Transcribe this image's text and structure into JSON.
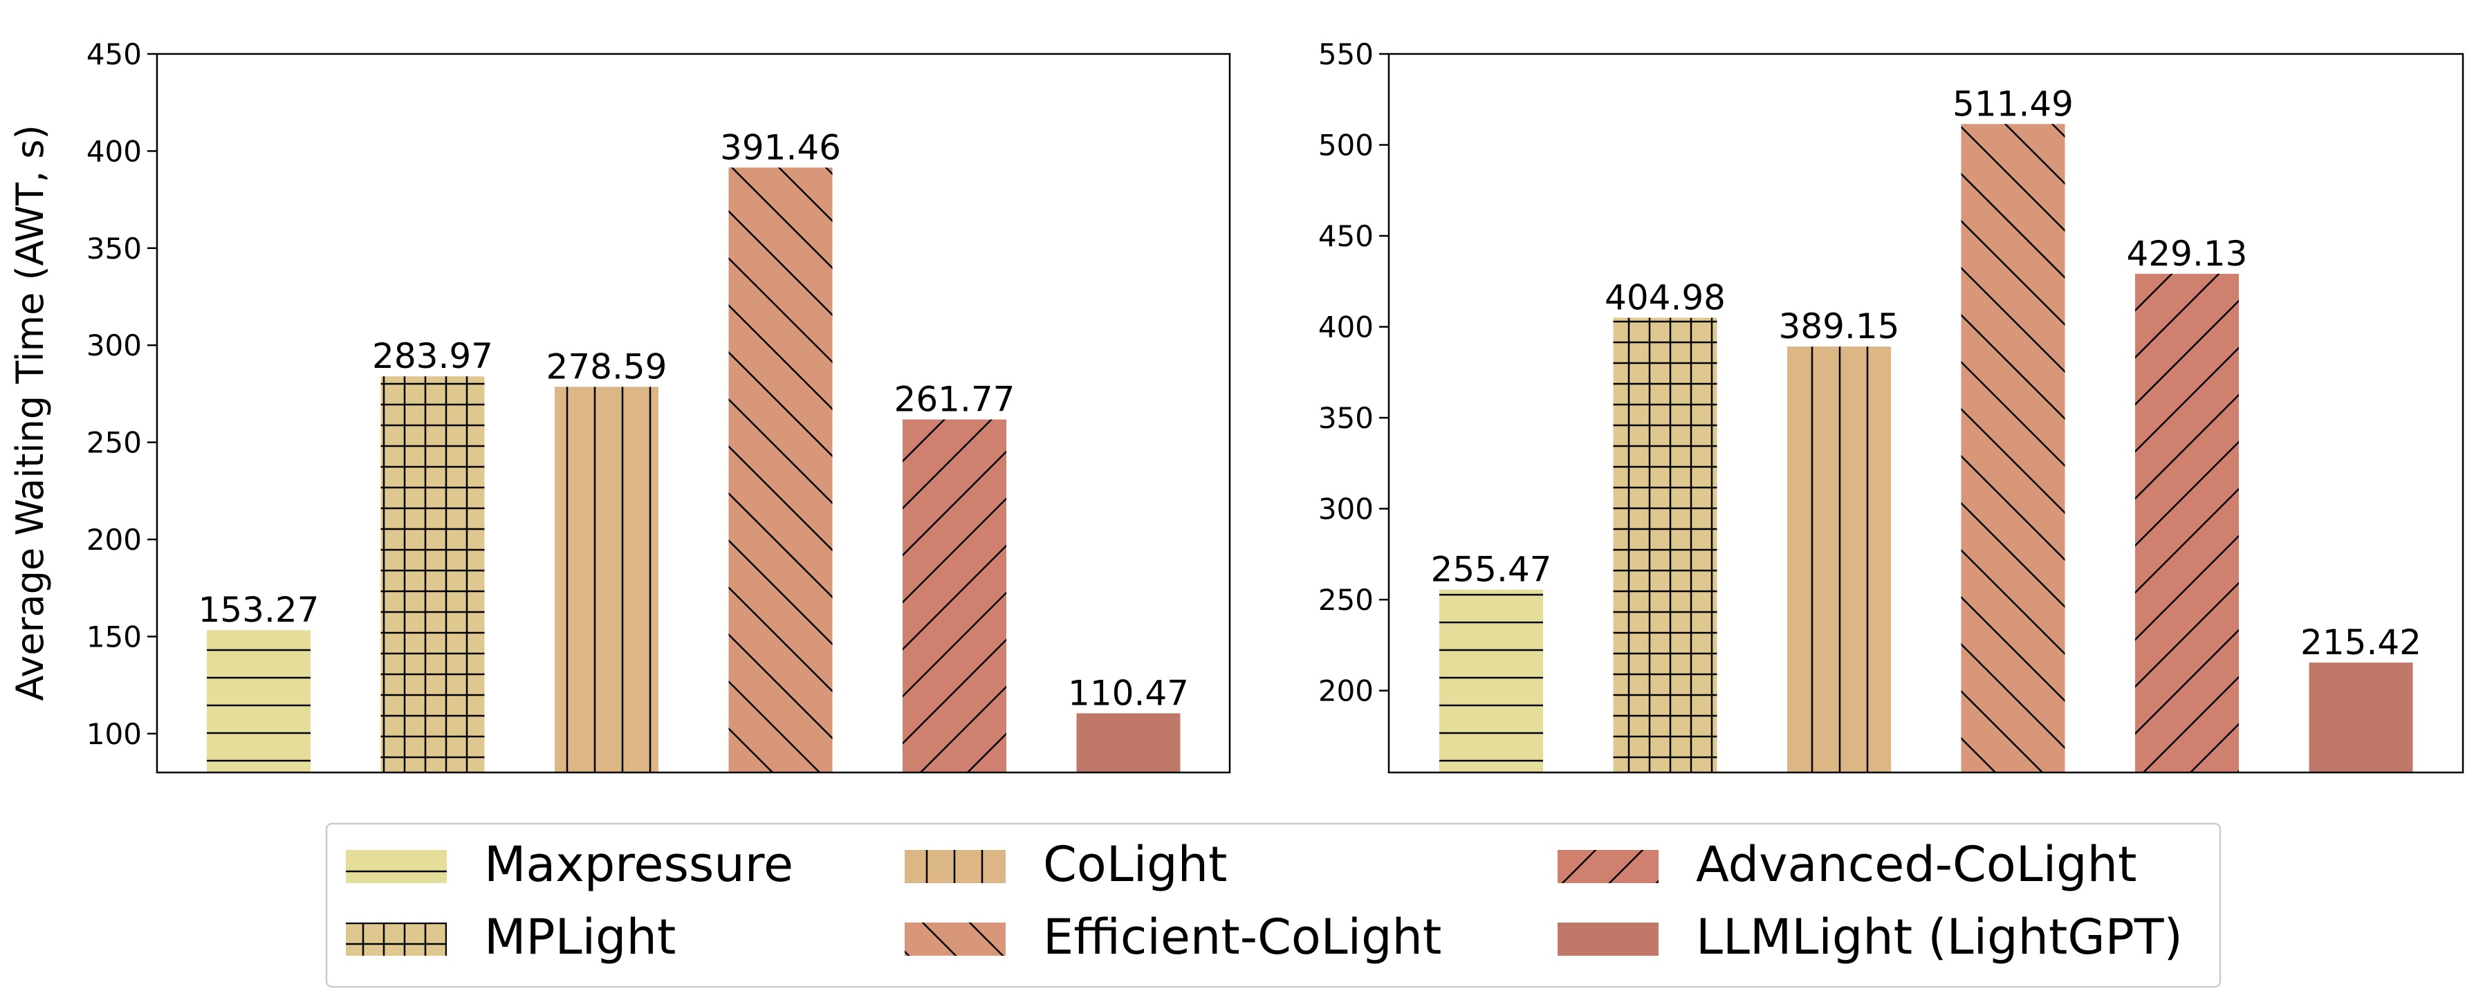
{
  "legend": {
    "placement": "bottom-center",
    "columns": 3
  },
  "chart_data": [
    {
      "type": "bar",
      "panel": "left",
      "title": "",
      "xlabel": "",
      "ylabel": "Average Waiting Time (AWT, s)",
      "ylim": [
        80,
        450
      ],
      "yticks": [
        100,
        150,
        200,
        250,
        300,
        350,
        400,
        450
      ],
      "grid": false,
      "categories": [
        "Maxpressure",
        "MPLight",
        "CoLight",
        "Efficient-CoLight",
        "Advanced-CoLight",
        "LLMLight (LightGPT)"
      ],
      "values": [
        153.27,
        283.97,
        278.59,
        391.46,
        261.77,
        110.47
      ],
      "value_labels": [
        "153.27",
        "283.97",
        "278.59",
        "391.46",
        "261.77",
        "110.47"
      ]
    },
    {
      "type": "bar",
      "panel": "right",
      "title": "",
      "xlabel": "",
      "ylabel": "",
      "ylim": [
        155,
        550
      ],
      "yticks": [
        200,
        250,
        300,
        350,
        400,
        450,
        500,
        550
      ],
      "grid": false,
      "categories": [
        "Maxpressure",
        "MPLight",
        "CoLight",
        "Efficient-CoLight",
        "Advanced-CoLight",
        "LLMLight (LightGPT)"
      ],
      "values": [
        255.47,
        404.98,
        389.15,
        511.49,
        429.13,
        215.42
      ],
      "value_labels": [
        "255.47",
        "404.98",
        "389.15",
        "511.49",
        "429.13",
        "215.42"
      ]
    }
  ],
  "series_styles": [
    {
      "name": "Maxpressure",
      "color": "#E5DE9A",
      "hatch": "horizontal"
    },
    {
      "name": "MPLight",
      "color": "#DEC88F",
      "hatch": "grid"
    },
    {
      "name": "CoLight",
      "color": "#DCB684",
      "hatch": "vertical"
    },
    {
      "name": "Efficient-CoLight",
      "color": "#D9977A",
      "hatch": "backslash"
    },
    {
      "name": "Advanced-CoLight",
      "color": "#CF806E",
      "hatch": "slash"
    },
    {
      "name": "LLMLight (LightGPT)",
      "color": "#C07868",
      "hatch": "none"
    }
  ]
}
